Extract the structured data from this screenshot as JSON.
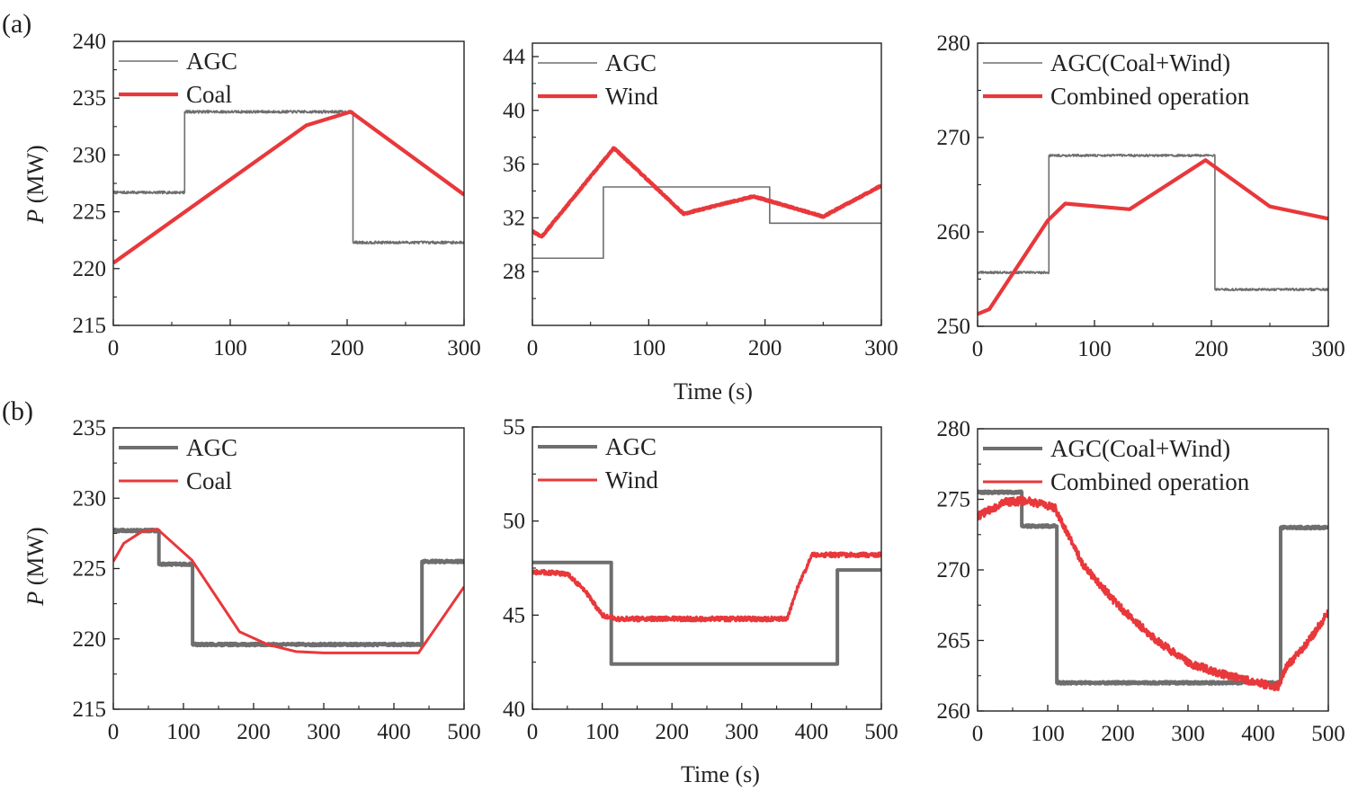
{
  "figure": {
    "row_labels": [
      "(a)",
      "(b)"
    ],
    "ylabel_italic": "P",
    "ylabel_unit": " (MW)",
    "xlabel": "Time (s)"
  },
  "colors": {
    "agc": "#6e6e6e",
    "red": "#e8383b",
    "axis": "#222222"
  },
  "chart_data": [
    {
      "type": "line",
      "id": "a1",
      "xlim": [
        0,
        300
      ],
      "ylim": [
        215,
        240
      ],
      "xticks": [
        0,
        100,
        200,
        300
      ],
      "yticks": [
        215,
        220,
        225,
        230,
        235,
        240
      ],
      "legend_location": "top-left",
      "series": [
        {
          "name": "AGC",
          "style": "thin",
          "noise": 0.12,
          "points": [
            [
              0,
              226.7
            ],
            [
              61,
              226.7
            ],
            [
              61,
              233.8
            ],
            [
              205,
              233.8
            ],
            [
              205,
              222.3
            ],
            [
              300,
              222.3
            ]
          ]
        },
        {
          "name": "Coal",
          "style": "red-thick",
          "noise": 0,
          "points": [
            [
              0,
              220.5
            ],
            [
              165,
              232.6
            ],
            [
              203,
              233.8
            ],
            [
              300,
              226.5
            ]
          ]
        }
      ]
    },
    {
      "type": "line",
      "id": "a2",
      "xlim": [
        0,
        300
      ],
      "ylim": [
        24,
        45
      ],
      "xticks": [
        0,
        100,
        200,
        300
      ],
      "yticks": [
        28,
        32,
        36,
        40,
        44
      ],
      "legend_location": "top-left",
      "series": [
        {
          "name": "AGC",
          "style": "thin",
          "noise": 0,
          "points": [
            [
              0,
              29.0
            ],
            [
              61,
              29.0
            ],
            [
              61,
              34.3
            ],
            [
              204,
              34.3
            ],
            [
              204,
              31.6
            ],
            [
              300,
              31.6
            ]
          ]
        },
        {
          "name": "Wind",
          "style": "red-thick",
          "noise": 0.05,
          "points": [
            [
              0,
              31.0
            ],
            [
              8,
              30.6
            ],
            [
              70,
              37.2
            ],
            [
              130,
              32.3
            ],
            [
              190,
              33.6
            ],
            [
              250,
              32.1
            ],
            [
              300,
              34.4
            ]
          ]
        }
      ]
    },
    {
      "type": "line",
      "id": "a3",
      "xlim": [
        0,
        300
      ],
      "ylim": [
        250,
        280
      ],
      "xticks": [
        0,
        100,
        200,
        300
      ],
      "yticks": [
        250,
        260,
        270,
        280
      ],
      "legend_location": "top-left",
      "series": [
        {
          "name": "AGC(Coal+Wind)",
          "style": "thin",
          "noise": 0.12,
          "points": [
            [
              0,
              255.7
            ],
            [
              61,
              255.7
            ],
            [
              61,
              268.1
            ],
            [
              203,
              268.1
            ],
            [
              203,
              253.9
            ],
            [
              300,
              253.9
            ]
          ]
        },
        {
          "name": "Combined operation",
          "style": "red-thick",
          "noise": 0,
          "points": [
            [
              0,
              251.3
            ],
            [
              10,
              251.8
            ],
            [
              60,
              261.2
            ],
            [
              75,
              263.0
            ],
            [
              130,
              262.4
            ],
            [
              195,
              267.6
            ],
            [
              250,
              262.7
            ],
            [
              300,
              261.4
            ]
          ]
        }
      ]
    },
    {
      "type": "line",
      "id": "b1",
      "xlim": [
        0,
        500
      ],
      "ylim": [
        215,
        235
      ],
      "xticks": [
        0,
        100,
        200,
        300,
        400,
        500
      ],
      "yticks": [
        215,
        220,
        225,
        230,
        235
      ],
      "legend_location": "top-left",
      "series": [
        {
          "name": "AGC",
          "style": "gray-thick",
          "noise": 0.08,
          "points": [
            [
              0,
              227.7
            ],
            [
              65,
              227.7
            ],
            [
              65,
              225.3
            ],
            [
              113,
              225.3
            ],
            [
              113,
              219.6
            ],
            [
              440,
              219.6
            ],
            [
              440,
              225.5
            ],
            [
              500,
              225.5
            ]
          ]
        },
        {
          "name": "Coal",
          "style": "red-medium",
          "noise": 0,
          "points": [
            [
              0,
              225.5
            ],
            [
              15,
              226.8
            ],
            [
              40,
              227.6
            ],
            [
              63,
              227.8
            ],
            [
              112,
              225.6
            ],
            [
              180,
              220.5
            ],
            [
              220,
              219.6
            ],
            [
              260,
              219.1
            ],
            [
              300,
              219.0
            ],
            [
              435,
              219.0
            ],
            [
              500,
              223.7
            ]
          ]
        }
      ]
    },
    {
      "type": "line",
      "id": "b2",
      "xlim": [
        0,
        500
      ],
      "ylim": [
        40,
        55
      ],
      "xticks": [
        0,
        100,
        200,
        300,
        400,
        500
      ],
      "yticks": [
        40,
        45,
        50,
        55
      ],
      "legend_location": "top-left",
      "series": [
        {
          "name": "AGC",
          "style": "gray-thick",
          "noise": 0,
          "points": [
            [
              0,
              47.8
            ],
            [
              113,
              47.8
            ],
            [
              113,
              42.4
            ],
            [
              437,
              42.4
            ],
            [
              437,
              47.4
            ],
            [
              500,
              47.4
            ]
          ]
        },
        {
          "name": "Wind",
          "style": "red-medium",
          "noise": 0.12,
          "points": [
            [
              0,
              47.3
            ],
            [
              50,
              47.2
            ],
            [
              75,
              46.3
            ],
            [
              100,
              45.0
            ],
            [
              120,
              44.8
            ],
            [
              365,
              44.8
            ],
            [
              380,
              46.5
            ],
            [
              395,
              47.7
            ],
            [
              400,
              48.2
            ],
            [
              500,
              48.2
            ]
          ]
        }
      ]
    },
    {
      "type": "line",
      "id": "b3",
      "xlim": [
        0,
        500
      ],
      "ylim": [
        260,
        280
      ],
      "xticks": [
        0,
        100,
        200,
        300,
        400,
        500
      ],
      "yticks": [
        260,
        265,
        270,
        275,
        280
      ],
      "legend_location": "top-left",
      "series": [
        {
          "name": "AGC(Coal+Wind)",
          "style": "gray-thick",
          "noise": 0.08,
          "points": [
            [
              0,
              275.5
            ],
            [
              63,
              275.5
            ],
            [
              63,
              273.1
            ],
            [
              113,
              273.1
            ],
            [
              113,
              262.0
            ],
            [
              432,
              262.0
            ],
            [
              432,
              273.0
            ],
            [
              500,
              273.0
            ]
          ]
        },
        {
          "name": "Combined operation",
          "style": "red-medium",
          "noise": 0.28,
          "points": [
            [
              0,
              273.8
            ],
            [
              40,
              274.8
            ],
            [
              70,
              274.9
            ],
            [
              110,
              274.4
            ],
            [
              150,
              270.4
            ],
            [
              200,
              267.5
            ],
            [
              250,
              265.2
            ],
            [
              300,
              263.4
            ],
            [
              350,
              262.6
            ],
            [
              400,
              262.0
            ],
            [
              428,
              261.7
            ],
            [
              440,
              263.1
            ],
            [
              470,
              264.8
            ],
            [
              500,
              267.0
            ]
          ]
        }
      ]
    }
  ]
}
